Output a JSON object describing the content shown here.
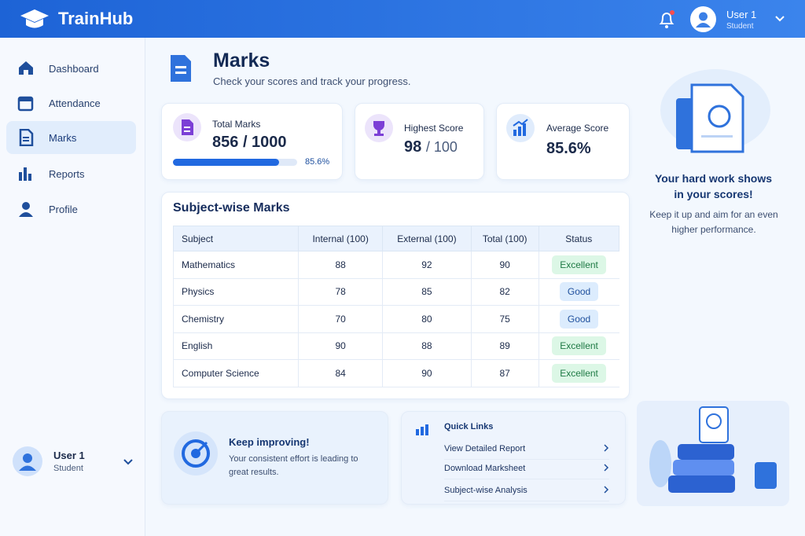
{
  "header": {
    "brand": "TrainHub",
    "user_name": "User 1",
    "user_role": "Student"
  },
  "nav": {
    "items": [
      "Dashboard",
      "Attendance",
      "Marks",
      "Reports",
      "Profile"
    ],
    "active": 2
  },
  "sidebar_user": {
    "name": "User 1",
    "role": "Student"
  },
  "page": {
    "title": "Marks",
    "subtitle": "Check your scores and track your progress."
  },
  "stats": [
    {
      "label": "Total Marks",
      "value": "856",
      "total": "/ 1000",
      "percent": 85.6,
      "percent_label": "85.6%"
    },
    {
      "label": "Highest Score",
      "value": "98",
      "total": "/ 100"
    },
    {
      "label": "Average Score",
      "value": "85.6%"
    }
  ],
  "table": {
    "title": "Subject-wise Marks",
    "columns": [
      "Subject",
      "Internal (100)",
      "External (100)",
      "Total (100)",
      "Status"
    ],
    "rows": [
      {
        "subject": "Mathematics",
        "internal": 88,
        "external": 92,
        "total": 90,
        "status": "Excellent",
        "tone": "#dcf7e6"
      },
      {
        "subject": "Physics",
        "internal": 78,
        "external": 85,
        "total": 82,
        "status": "Good",
        "tone": "#dcecfd"
      },
      {
        "subject": "Chemistry",
        "internal": 70,
        "external": 80,
        "total": 75,
        "status": "Good",
        "tone": "#dcecfd"
      },
      {
        "subject": "English",
        "internal": 90,
        "external": 88,
        "total": 89,
        "status": "Excellent",
        "tone": "#dcf7e6"
      },
      {
        "subject": "Computer Science",
        "internal": 84,
        "external": 90,
        "total": 87,
        "status": "Excellent",
        "tone": "#dcf7e6"
      }
    ]
  },
  "promo": {
    "title": "Your hard work shows in your scores!",
    "text": "Keep it up and aim for an even higher performance."
  },
  "motivation": {
    "title": "Keep improving!",
    "text": "Your consistent effort is leading to great results."
  },
  "quick_links": {
    "title": "Quick Links",
    "items": [
      "View Detailed Report",
      "Download Marksheet",
      "Subject-wise Analysis"
    ]
  }
}
